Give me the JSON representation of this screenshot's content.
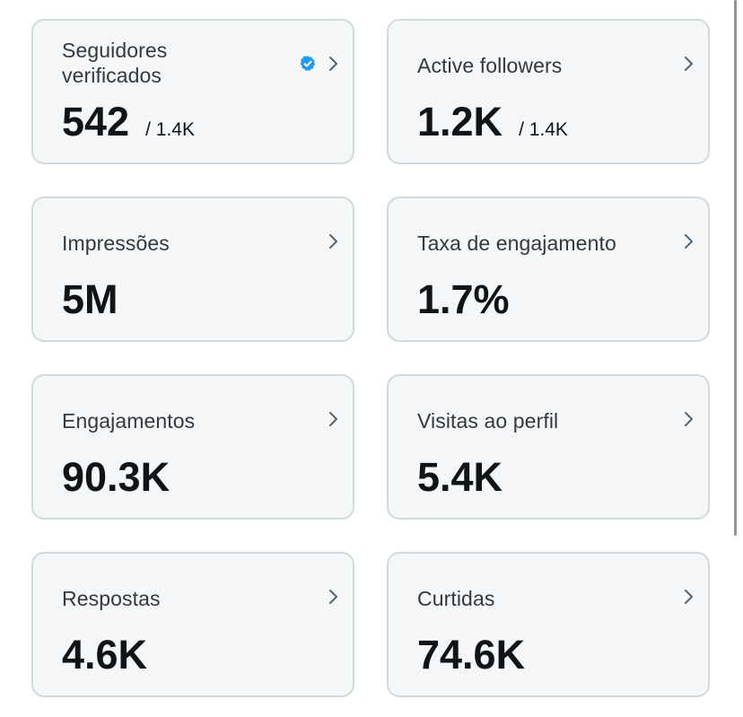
{
  "cards": [
    {
      "label": "Seguidores verificados",
      "value": "542",
      "total": "/ 1.4K",
      "verified": true
    },
    {
      "label": "Active followers",
      "value": "1.2K",
      "total": "/ 1.4K"
    },
    {
      "label": "Impressões",
      "value": "5M"
    },
    {
      "label": "Taxa de engajamento",
      "value": "1.7%"
    },
    {
      "label": "Engajamentos",
      "value": "90.3K"
    },
    {
      "label": "Visitas ao perfil",
      "value": "5.4K"
    },
    {
      "label": "Respostas",
      "value": "4.6K"
    },
    {
      "label": "Curtidas",
      "value": "74.6K"
    }
  ],
  "icons": {
    "verified": "verified-badge-icon",
    "chevron": "chevron-right-icon"
  },
  "colors": {
    "card_background": "#f4f6f7",
    "card_border": "#cfd9de",
    "verified_blue": "#1d9bf0",
    "value_text": "#0f1419",
    "label_text": "#2f3a44"
  }
}
